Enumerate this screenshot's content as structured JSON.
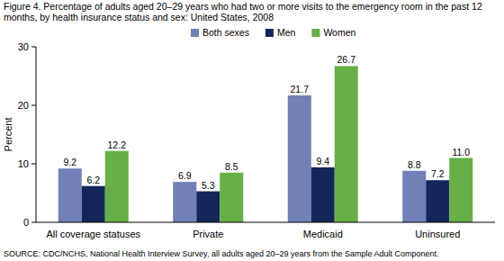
{
  "chart_data": {
    "type": "bar",
    "title": "Figure 4. Percentage of adults aged 20–29 years who had two or more visits to the emergency room in the past 12 months, by health insurance status and sex: United States, 2008",
    "y_label": "Percent",
    "source": "SOURCE: CDC/NCHS, National Health Interview Survey, all adults aged 20–29 years from the Sample Adult Component.",
    "categories": [
      "All coverage statuses",
      "Private",
      "Medicaid",
      "Uninsured"
    ],
    "series": [
      {
        "name": "Both sexes",
        "color": "#7180b6",
        "values": [
          9.2,
          6.9,
          21.7,
          8.8
        ]
      },
      {
        "name": "Men",
        "color": "#14275a",
        "values": [
          6.2,
          5.3,
          9.4,
          7.2
        ]
      },
      {
        "name": "Women",
        "color": "#66b046",
        "values": [
          12.2,
          8.5,
          26.7,
          11.0
        ],
        "value_labels": [
          "12.2",
          "8.5",
          "26.7",
          "11.0"
        ]
      }
    ],
    "ylim": [
      0,
      30
    ],
    "yticks": [
      0,
      10,
      20,
      30
    ],
    "grid": false,
    "legend": "top",
    "data_labels": true
  }
}
